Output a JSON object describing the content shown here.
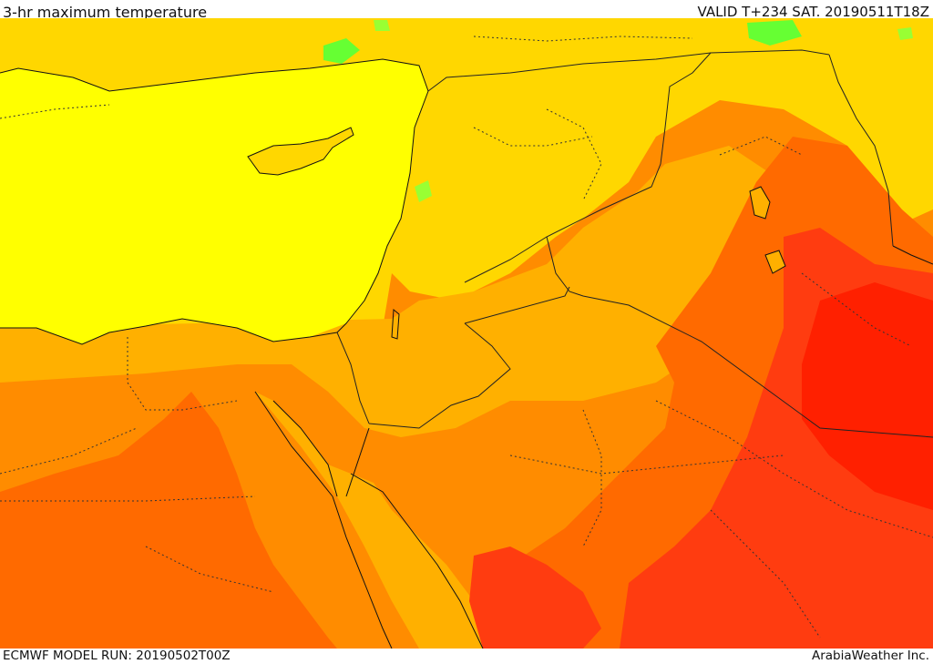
{
  "header": {
    "title": "3-hr maximum temperature",
    "valid": "VALID T+234 SAT. 20190511T18Z"
  },
  "footer": {
    "model_run": "ECMWF MODEL RUN: 20190502T00Z",
    "credit": "ArabiaWeather Inc."
  },
  "colors": {
    "sea": "#ffff00",
    "cool_green": "#66ff33",
    "yellow_warm": "#ffd700",
    "orange_light": "#ffb000",
    "orange": "#ff8c00",
    "orange_dark": "#ff6a00",
    "red_orange": "#ff3c10",
    "red": "#ff2000",
    "coast_line": "#111111",
    "border_line": "#222222"
  }
}
